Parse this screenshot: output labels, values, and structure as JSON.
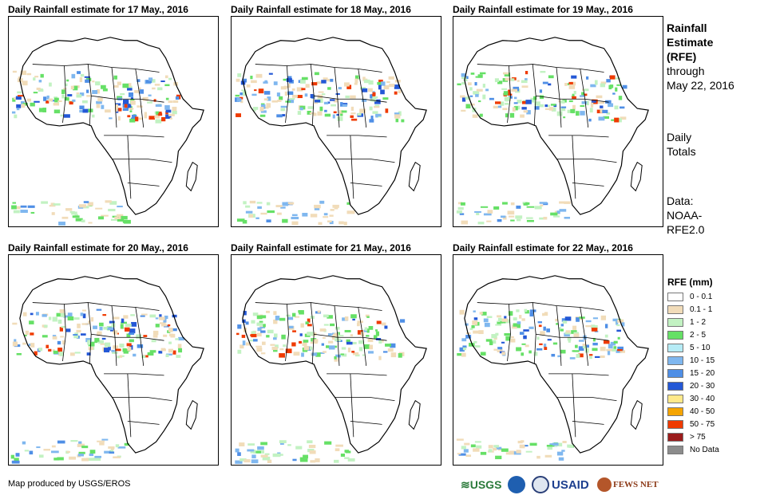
{
  "panels": [
    {
      "title": "Daily Rainfall estimate for 17 May., 2016"
    },
    {
      "title": "Daily Rainfall estimate for 18 May., 2016"
    },
    {
      "title": "Daily Rainfall estimate for 19 May., 2016"
    },
    {
      "title": "Daily Rainfall estimate for 20 May., 2016"
    },
    {
      "title": "Daily Rainfall estimate for 21 May., 2016"
    },
    {
      "title": "Daily Rainfall estimate for 22 May., 2016"
    }
  ],
  "side": {
    "line1": "Rainfall",
    "line2": "Estimate",
    "line3": "(RFE)",
    "line4": "through",
    "line5": "May 22, 2016",
    "daily1": "Daily",
    "daily2": "Totals",
    "data1": "Data:",
    "data2": "NOAA-",
    "data3": "RFE2.0"
  },
  "legend": {
    "title": "RFE (mm)",
    "items": [
      {
        "label": "0 - 0.1",
        "color": "#ffffff"
      },
      {
        "label": "0.1 - 1",
        "color": "#f1dcb9"
      },
      {
        "label": "1 - 2",
        "color": "#c2f2c2"
      },
      {
        "label": "2 - 5",
        "color": "#66e066"
      },
      {
        "label": "5 - 10",
        "color": "#b6ecf6"
      },
      {
        "label": "10 - 15",
        "color": "#7fb7ef"
      },
      {
        "label": "15 - 20",
        "color": "#4f8fe6"
      },
      {
        "label": "20 - 30",
        "color": "#2458d6"
      },
      {
        "label": "30 - 40",
        "color": "#ffe98a"
      },
      {
        "label": "40 - 50",
        "color": "#f5a400"
      },
      {
        "label": "50 - 75",
        "color": "#ef3a00"
      },
      {
        "label": "> 75",
        "color": "#9b1c1c"
      },
      {
        "label": "No Data",
        "color": "#8c8c8c"
      }
    ]
  },
  "credit": "Map produced by USGS/EROS",
  "logos": {
    "usgs": "≋USGS",
    "usaid": "USAID",
    "fewsnet": "FEWS NET"
  }
}
